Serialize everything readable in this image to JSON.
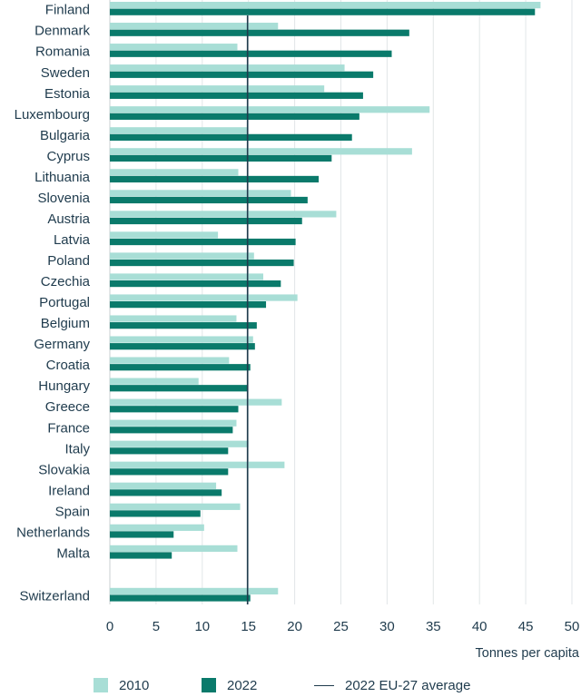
{
  "chart_data": {
    "type": "bar",
    "orientation": "horizontal",
    "categories": [
      "Finland",
      "Denmark",
      "Romania",
      "Sweden",
      "Estonia",
      "Luxembourg",
      "Bulgaria",
      "Cyprus",
      "Lithuania",
      "Slovenia",
      "Austria",
      "Latvia",
      "Poland",
      "Czechia",
      "Portugal",
      "Belgium",
      "Germany",
      "Croatia",
      "Hungary",
      "Greece",
      "France",
      "Italy",
      "Slovakia",
      "Ireland",
      "Spain",
      "Netherlands",
      "Malta",
      "Switzerland"
    ],
    "series": [
      {
        "name": "2010",
        "color": "#a8ded6",
        "values": [
          46.6,
          18.2,
          13.8,
          25.4,
          23.2,
          34.6,
          14.9,
          32.7,
          13.9,
          19.6,
          24.5,
          11.7,
          15.6,
          16.6,
          20.3,
          13.7,
          15.5,
          12.9,
          9.6,
          18.6,
          13.7,
          15.0,
          18.9,
          11.5,
          14.1,
          10.2,
          13.8,
          18.2
        ]
      },
      {
        "name": "2022",
        "color": "#0a7a6b",
        "values": [
          46.0,
          32.4,
          30.5,
          28.5,
          27.4,
          27.0,
          26.2,
          24.0,
          22.6,
          21.4,
          20.8,
          20.1,
          19.9,
          18.5,
          16.9,
          15.9,
          15.7,
          15.2,
          14.9,
          13.9,
          13.3,
          12.8,
          12.8,
          12.1,
          9.8,
          6.9,
          6.7,
          15.2
        ]
      }
    ],
    "reference_line": {
      "label": "2022 EU-27 average",
      "value": 14.9,
      "color": "#1f3b4d"
    },
    "xlabel": "Tonnes per capita",
    "xlim": [
      0,
      50
    ],
    "xticks": [
      0,
      5,
      10,
      15,
      20,
      25,
      30,
      35,
      40,
      45,
      50
    ],
    "grid": "vertical",
    "legend_position": "bottom"
  },
  "legend": {
    "item_2010": "2010",
    "item_2022": "2022",
    "item_avg": "2022 EU-27 average"
  }
}
